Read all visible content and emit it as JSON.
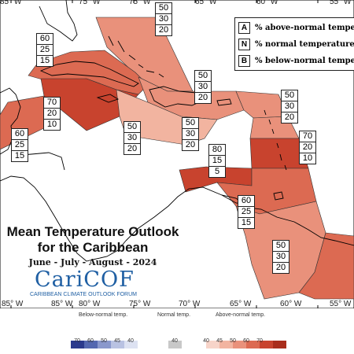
{
  "map": {
    "longitude_labels": [
      "85° W",
      "80° W",
      "75° W",
      "70° W",
      "65° W",
      "60° W",
      "55° W"
    ],
    "longitudes": [
      -85,
      -80,
      -75,
      -70,
      -65,
      -60,
      -55
    ],
    "colors": {
      "above_40": "#f7d4c9",
      "above_45": "#f2b4a0",
      "above_50": "#e9917b",
      "above_60": "#dc6a52",
      "above_70": "#c8432e",
      "above_80": "#a92d1c",
      "outline": "#333333",
      "land_outline": "#000000"
    }
  },
  "regions": [
    {
      "name": "bahamas",
      "above": 50,
      "normal": 30,
      "below": 20
    },
    {
      "name": "cuba",
      "above": 60,
      "normal": 25,
      "below": 15
    },
    {
      "name": "jamaica-caymans",
      "above": 70,
      "normal": 20,
      "below": 10
    },
    {
      "name": "belize",
      "above": 60,
      "normal": 25,
      "below": 15
    },
    {
      "name": "hispaniola",
      "above": 50,
      "normal": 30,
      "below": 20
    },
    {
      "name": "hispaniola-south",
      "above": 50,
      "normal": 30,
      "below": 20
    },
    {
      "name": "puerto-rico",
      "above": 50,
      "normal": 30,
      "below": 20
    },
    {
      "name": "northern-lesser-antilles",
      "above": 50,
      "normal": 30,
      "below": 20
    },
    {
      "name": "windward-islands",
      "above": 70,
      "normal": 20,
      "below": 10
    },
    {
      "name": "abc-islands",
      "above": 80,
      "normal": 15,
      "below": 5
    },
    {
      "name": "trinidad",
      "above": 60,
      "normal": 25,
      "below": 15
    },
    {
      "name": "guyanas",
      "above": 50,
      "normal": 30,
      "below": 20
    }
  ],
  "key": {
    "rows": [
      {
        "letter": "A",
        "text": "% above-normal temperature"
      },
      {
        "letter": "N",
        "text": "% normal temperature"
      },
      {
        "letter": "B",
        "text": "% below-normal temperature"
      }
    ]
  },
  "title": {
    "line1": "Mean Temperature Outlook",
    "line2": "for the Caribbean",
    "period": "June - July - August - 2024"
  },
  "logo": {
    "name": "CariCOF",
    "tagline": "CARIBBEAN CLIMATE OUTLOOK FORUM"
  },
  "scale": {
    "below_label": "Below-normal temp.",
    "normal_label": "Normal temp.",
    "above_label": "Above-normal temp.",
    "below_ticks": [
      "70",
      "60",
      "50",
      "45",
      "40"
    ],
    "normal_tick": "40",
    "above_ticks": [
      "40",
      "45",
      "50",
      "60",
      "70"
    ],
    "below_colors": [
      "#2b3a8c",
      "#5468b0",
      "#8a98cc",
      "#b9c2e2",
      "#dde2f2"
    ],
    "normal_color": "#c8c8c8",
    "above_colors": [
      "#f7d4c9",
      "#f2b4a0",
      "#e9917b",
      "#dc6a52",
      "#c8432e",
      "#a92d1c"
    ]
  }
}
